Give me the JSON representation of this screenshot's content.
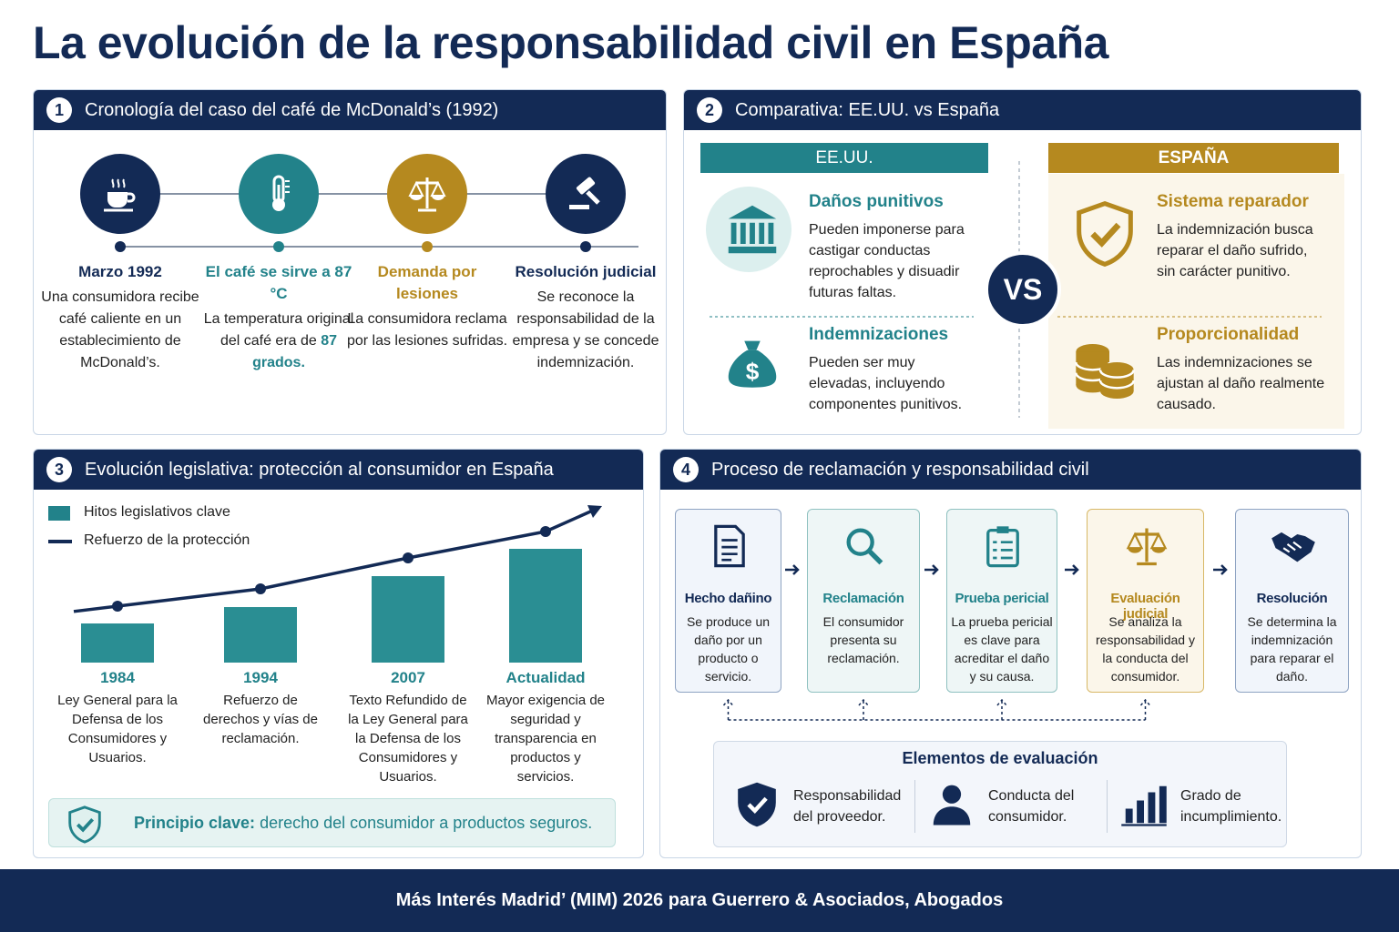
{
  "title": "La evolución de la responsabilidad civil en España",
  "timeline": {
    "number": "1",
    "title": "Cronología del caso del café de McDonald’s (1992)",
    "steps": [
      {
        "title": "Marzo 1992",
        "text": "Una consumidora recibe café caliente en un establecimiento de McDonald’s."
      },
      {
        "title": "El café se sirve a 87 °C",
        "text": "La temperatura original del café era de",
        "highlight": "87 grados."
      },
      {
        "title": "Demanda por lesiones",
        "text": "La consumidora reclama por las lesiones sufridas."
      },
      {
        "title": "Resolución judicial",
        "text": "Se reconoce la responsabilidad de la empresa y se concede indemnización."
      }
    ]
  },
  "comparison": {
    "number": "2",
    "title": "Comparativa: EE.UU. vs España",
    "vs": "VS",
    "columns": [
      {
        "header": "EE.UU.",
        "items": [
          {
            "title": "Daños punitivos",
            "text": "Pueden imponerse para castigar conductas reprochables y disuadir futuras faltas."
          },
          {
            "title": "Indemnizaciones",
            "text": "Pueden ser muy elevadas, incluyendo componentes punitivos."
          }
        ]
      },
      {
        "header": "ESPAÑA",
        "items": [
          {
            "title": "Sistema reparador",
            "text": "La indemnización busca reparar el daño sufrido, sin carácter punitivo."
          },
          {
            "title": "Proporcionalidad",
            "text": "Las indemnizaciones se ajustan al daño realmente causado."
          }
        ]
      }
    ]
  },
  "legislation": {
    "number": "3",
    "title": "Evolución legislativa: protección al consumidor en España",
    "legend": {
      "bars": "Hitos legislativos clave",
      "line": "Refuerzo de la protección"
    },
    "milestones": [
      {
        "label": "1984",
        "text": "Ley General para la Defensa de los Consumidores y Usuarios.",
        "bar": 43,
        "line": 62
      },
      {
        "label": "1994",
        "text": "Refuerzo de derechos y vías de reclamación.",
        "bar": 61,
        "line": 81
      },
      {
        "label": "2007",
        "text": "Texto Refundido de la Ley General para la Defensa de los Consumidores y Usuarios.",
        "bar": 95,
        "line": 115
      },
      {
        "label": "Actualidad",
        "text": "Mayor exigencia de seguridad y transparencia en productos y servicios.",
        "bar": 125,
        "line": 144
      }
    ],
    "principle": {
      "label": "Principio clave:",
      "text": "derecho del consumidor a productos seguros."
    }
  },
  "process": {
    "number": "4",
    "title": "Proceso de reclamación y responsabilidad civil",
    "steps": [
      {
        "title": "Hecho dañino",
        "text": "Se produce un daño por un producto o servicio."
      },
      {
        "title": "Reclamación",
        "text": "El consumidor presenta su reclamación."
      },
      {
        "title": "Prueba pericial",
        "text": "La prueba pericial es clave para acreditar el daño y su causa."
      },
      {
        "title": "Evaluación judicial",
        "text": "Se analiza la responsabilidad y la conducta del consumidor."
      },
      {
        "title": "Resolución",
        "text": "Se determina la indemnización para reparar el daño."
      }
    ],
    "evaluation": {
      "title": "Elementos de evaluación",
      "items": [
        "Responsabilidad del proveedor.",
        "Conducta del consumidor.",
        "Grado de incumplimiento."
      ]
    }
  },
  "footer": "Más Interés Madrid’ (MIM) 2026 para Guerrero & Asociados, Abogados"
}
